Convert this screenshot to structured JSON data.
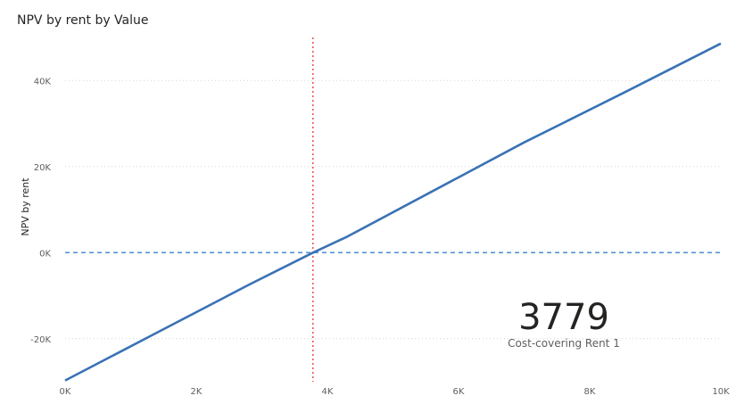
{
  "chart_data": {
    "type": "line",
    "title": "NPV by rent by Value",
    "xlabel": "",
    "ylabel": "NPV by rent",
    "xlim": [
      0,
      10000
    ],
    "ylim": [
      -30000,
      50000
    ],
    "x_ticks": [
      0,
      2000,
      4000,
      6000,
      8000,
      10000
    ],
    "x_tick_labels": [
      "0K",
      "2K",
      "4K",
      "6K",
      "8K",
      "10K"
    ],
    "y_ticks": [
      -20000,
      0,
      20000,
      40000
    ],
    "y_tick_labels": [
      "-20K",
      "0K",
      "20K",
      "40K"
    ],
    "grid": true,
    "series": [
      {
        "name": "",
        "color": "#3a72b4",
        "x": [
          0,
          1400,
          2800,
          3779,
          4300,
          7000,
          8500,
          10000
        ],
        "y": [
          -29700,
          -18600,
          -7500,
          0,
          3700,
          25600,
          37000,
          48600
        ]
      }
    ],
    "reference_lines": [
      {
        "orientation": "vertical",
        "value": 3779,
        "color": "#e8565c",
        "style": "dotted"
      },
      {
        "orientation": "horizontal",
        "value": 0,
        "color": "#4a8fd6",
        "style": "dashed"
      }
    ]
  },
  "card": {
    "value": "3779",
    "label": "Cost-covering Rent 1"
  }
}
